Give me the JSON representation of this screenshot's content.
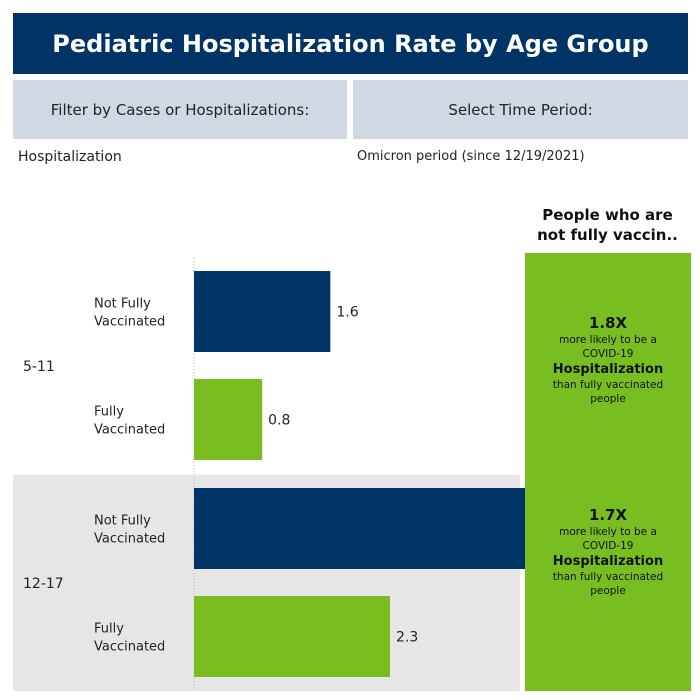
{
  "title": "Pediatric Hospitalization Rate by Age Group",
  "filters": {
    "cases_label": "Filter by Cases or Hospitalizations:",
    "cases_value": "Hospitalization",
    "period_label": "Select Time Period:",
    "period_value": "Omicron period (since 12/19/2021)"
  },
  "colors": {
    "header": "#003366",
    "not_fully_vaccinated": "#003366",
    "fully_vaccinated": "#78be21",
    "band": "#e6e6e6"
  },
  "chart_data": {
    "type": "bar",
    "orientation": "horizontal",
    "groups": [
      {
        "label": "5-11",
        "bars": [
          {
            "category": "Not Fully Vaccinated",
            "value": 1.6
          },
          {
            "category": "Fully Vaccinated",
            "value": 0.8
          }
        ]
      },
      {
        "label": "12-17",
        "bars": [
          {
            "category": "Not Fully Vaccinated",
            "value": 4.1
          },
          {
            "category": "Fully Vaccinated",
            "value": 2.3
          }
        ]
      }
    ],
    "category_lines": {
      "Not Fully Vaccinated": [
        "Not Fully",
        "Vaccinated"
      ],
      "Fully Vaccinated": [
        "Fully",
        "Vaccinated"
      ]
    },
    "xlim": [
      0,
      4.6
    ]
  },
  "summary": {
    "header_line1": "People who are",
    "header_line2": "not fully vaccin..",
    "line_more_likely": "more likely to be a",
    "line_covid": "COVID-19",
    "metric": "Hospitalization",
    "line_than": "than fully vaccinated",
    "line_people": "people",
    "multipliers": [
      "1.8X",
      "1.7X"
    ]
  }
}
